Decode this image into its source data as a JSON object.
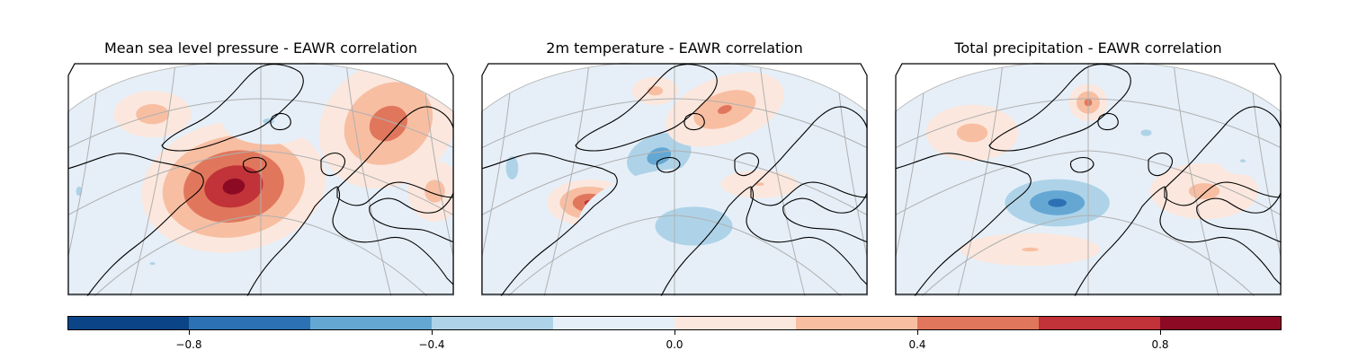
{
  "chart_data": [
    {
      "type": "heatmap",
      "title": "Mean sea level pressure - EAWR correlation",
      "colormap": "RdBu_r",
      "value_range": [
        -1.0,
        1.0
      ],
      "features": [
        {
          "kind": "max",
          "cx": 0.43,
          "cy": 0.53,
          "rx": 0.24,
          "ry": 0.28,
          "rot": -10,
          "peak": 0.88
        },
        {
          "kind": "max",
          "cx": 0.83,
          "cy": 0.26,
          "rx": 0.19,
          "ry": 0.26,
          "rot": -35,
          "peak": 0.55
        },
        {
          "kind": "max",
          "cx": 0.95,
          "cy": 0.55,
          "rx": 0.07,
          "ry": 0.13,
          "rot": 0,
          "peak": 0.32
        },
        {
          "kind": "max",
          "cx": 0.22,
          "cy": 0.22,
          "rx": 0.1,
          "ry": 0.1,
          "rot": 0,
          "peak": 0.35
        },
        {
          "kind": "min",
          "cx": 0.52,
          "cy": 0.25,
          "rx": 0.12,
          "ry": 0.1,
          "rot": 0,
          "peak": -0.22
        },
        {
          "kind": "min",
          "cx": 0.03,
          "cy": 0.55,
          "rx": 0.04,
          "ry": 0.1,
          "rot": 0,
          "peak": -0.25
        },
        {
          "kind": "min",
          "cx": 0.22,
          "cy": 0.86,
          "rx": 0.06,
          "ry": 0.05,
          "rot": 0,
          "peak": -0.22
        }
      ]
    },
    {
      "type": "heatmap",
      "title": "2m temperature - EAWR correlation",
      "colormap": "RdBu_r",
      "value_range": [
        -1.0,
        1.0
      ],
      "features": [
        {
          "kind": "max",
          "cx": 0.28,
          "cy": 0.6,
          "rx": 0.11,
          "ry": 0.1,
          "rot": 0,
          "peak": 0.66
        },
        {
          "kind": "min",
          "cx": 0.46,
          "cy": 0.4,
          "rx": 0.14,
          "ry": 0.15,
          "rot": -20,
          "peak": -0.52
        },
        {
          "kind": "min",
          "cx": 0.55,
          "cy": 0.7,
          "rx": 0.3,
          "ry": 0.25,
          "rot": 0,
          "peak": -0.3
        },
        {
          "kind": "min",
          "cx": 0.08,
          "cy": 0.45,
          "rx": 0.08,
          "ry": 0.25,
          "rot": 0,
          "peak": -0.25
        },
        {
          "kind": "max",
          "cx": 0.63,
          "cy": 0.2,
          "rx": 0.16,
          "ry": 0.14,
          "rot": -20,
          "peak": 0.42
        },
        {
          "kind": "max",
          "cx": 0.45,
          "cy": 0.12,
          "rx": 0.06,
          "ry": 0.06,
          "rot": 0,
          "peak": 0.3
        },
        {
          "kind": "max",
          "cx": 0.72,
          "cy": 0.52,
          "rx": 0.1,
          "ry": 0.06,
          "rot": 0,
          "peak": 0.22
        }
      ]
    },
    {
      "type": "heatmap",
      "title": "Total precipitation - EAWR correlation",
      "colormap": "RdBu_r",
      "value_range": [
        -1.0,
        1.0
      ],
      "features": [
        {
          "kind": "min",
          "cx": 0.42,
          "cy": 0.6,
          "rx": 0.2,
          "ry": 0.15,
          "rot": 0,
          "peak": -0.62
        },
        {
          "kind": "max",
          "cx": 0.5,
          "cy": 0.17,
          "rx": 0.05,
          "ry": 0.08,
          "rot": 0,
          "peak": 0.5
        },
        {
          "kind": "max",
          "cx": 0.2,
          "cy": 0.3,
          "rx": 0.12,
          "ry": 0.12,
          "rot": 0,
          "peak": 0.3
        },
        {
          "kind": "max",
          "cx": 0.8,
          "cy": 0.55,
          "rx": 0.14,
          "ry": 0.12,
          "rot": 0,
          "peak": 0.28
        },
        {
          "kind": "max",
          "cx": 0.35,
          "cy": 0.8,
          "rx": 0.18,
          "ry": 0.07,
          "rot": 0,
          "peak": 0.22
        },
        {
          "kind": "min",
          "cx": 0.65,
          "cy": 0.3,
          "rx": 0.07,
          "ry": 0.07,
          "rot": 0,
          "peak": -0.25
        },
        {
          "kind": "min",
          "cx": 0.9,
          "cy": 0.42,
          "rx": 0.06,
          "ry": 0.06,
          "rot": 0,
          "peak": -0.22
        }
      ]
    }
  ],
  "colorbar": {
    "range": [
      -1.0,
      1.0
    ],
    "levels": [
      -1.0,
      -0.8,
      -0.6,
      -0.4,
      -0.2,
      0.0,
      0.2,
      0.4,
      0.6,
      0.8,
      1.0
    ],
    "colors": [
      "#08306b",
      "#2166ac",
      "#4393c3",
      "#92c5de",
      "#d1e5f0",
      "#e8f0f8",
      "#fdeee4",
      "#fddbc7",
      "#f4a582",
      "#d6604d",
      "#b2182b",
      "#67001f"
    ],
    "fill_colors": [
      "#0b4587",
      "#2b71b4",
      "#65a7d3",
      "#aed3e8",
      "#e6eff8",
      "#fbe7dd",
      "#f8bea2",
      "#e0775c",
      "#c13338",
      "#8c0a24"
    ],
    "ticks": [
      -0.8,
      -0.4,
      0.0,
      0.4,
      0.8
    ],
    "tick_labels": [
      "−0.8",
      "−0.4",
      "0.0",
      "0.4",
      "0.8"
    ]
  }
}
